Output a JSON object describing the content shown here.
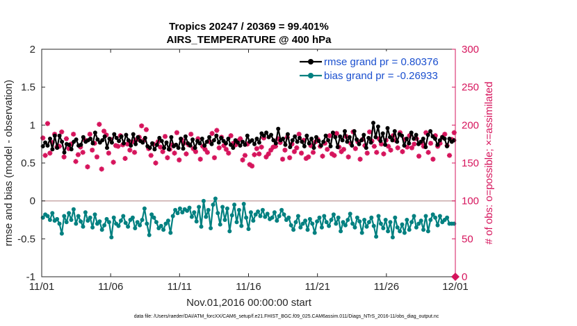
{
  "chart_data": {
    "type": "line",
    "title": "Tropics 20247 / 20369 = 99.401%",
    "subtitle": "AIRS_TEMPERATURE @ 400 hPa",
    "xlabel": "Nov.01,2016 00:00:00 start",
    "ylabel": "rmse and bias (model - observation)",
    "ylabel_right": "# of obs: o=possible; ×=assimilated",
    "footer": "data file: /Users/raeder/DAI/ATM_forcXX/CAM6_setup/f.e21.FHIST_BGC.f09_025.CAM6assim.011/Diags_NTrS_2016-11/obs_diag_output.nc",
    "xlim": [
      0,
      30
    ],
    "ylim": [
      -1,
      2
    ],
    "ylim_right": [
      0,
      300
    ],
    "x_ticks": [
      0,
      5,
      10,
      15,
      20,
      25,
      30
    ],
    "x_tick_labels": [
      "11/01",
      "11/06",
      "11/11",
      "11/16",
      "11/21",
      "11/26",
      "12/01"
    ],
    "y_ticks": [
      -1,
      -0.5,
      0,
      0.5,
      1,
      1.5,
      2
    ],
    "y_tick_labels": [
      "-1",
      "-0.5",
      "0",
      "0.5",
      "1",
      "1.5",
      "2"
    ],
    "y_right_ticks": [
      0,
      50,
      100,
      150,
      200,
      250,
      300
    ],
    "y_right_tick_labels": [
      "0",
      "50",
      "100",
      "150",
      "200",
      "250",
      "300"
    ],
    "legend_position": "top-right",
    "series": [
      {
        "name": "rmse grand pr = 0.80376",
        "axis": "left",
        "color": "#000000",
        "marker": "circle",
        "values": [
          0.72,
          0.77,
          0.73,
          0.82,
          0.68,
          0.86,
          0.7,
          0.86,
          0.78,
          0.64,
          0.75,
          0.74,
          0.68,
          0.78,
          0.81,
          0.73,
          0.74,
          0.84,
          0.78,
          0.8,
          0.82,
          0.76,
          0.9,
          0.81,
          0.77,
          0.8,
          0.85,
          0.7,
          0.82,
          0.77,
          0.88,
          0.83,
          0.79,
          0.85,
          0.76,
          0.87,
          0.8,
          0.73,
          0.88,
          0.75,
          0.84,
          0.79,
          0.77,
          0.83,
          0.72,
          0.7,
          0.76,
          0.68,
          0.74,
          0.83,
          0.79,
          0.7,
          0.77,
          0.68,
          0.84,
          0.72,
          0.74,
          0.7,
          0.82,
          0.69,
          0.85,
          0.76,
          0.73,
          0.81,
          0.7,
          0.79,
          0.76,
          0.82,
          0.73,
          0.78,
          0.84,
          0.75,
          0.8,
          0.86,
          0.77,
          0.83,
          0.79,
          0.76,
          0.82,
          0.74,
          0.7,
          0.8,
          0.77,
          0.73,
          0.78,
          0.74,
          0.86,
          0.78,
          0.8,
          0.75,
          0.82,
          0.77,
          0.89,
          0.86,
          0.9,
          0.84,
          0.87,
          0.8,
          0.76,
          0.95,
          0.8,
          0.82,
          0.74,
          0.88,
          0.71,
          0.8,
          0.85,
          0.78,
          0.83,
          0.78,
          0.72,
          0.86,
          0.76,
          0.82,
          0.7,
          0.84,
          0.79,
          0.73,
          0.78,
          0.86,
          0.8,
          0.72,
          0.9,
          0.84,
          0.71,
          0.85,
          0.8,
          0.92,
          0.78,
          0.84,
          0.73,
          0.92,
          0.81,
          0.75,
          0.8,
          0.87,
          0.7,
          0.83,
          0.77,
          1.03,
          0.84,
          0.98,
          0.79,
          0.89,
          0.74,
          0.96,
          0.84,
          0.8,
          0.92,
          0.78,
          0.88,
          0.86,
          0.73,
          0.82,
          0.76,
          0.9,
          0.82,
          0.87,
          0.75,
          0.78,
          0.82,
          0.71,
          0.87,
          0.92,
          0.85,
          0.82,
          0.74,
          0.8,
          0.84,
          0.82,
          0.72,
          0.82,
          0.78,
          0.8
        ]
      },
      {
        "name": "bias grand pr = -0.26933",
        "axis": "left",
        "color": "#008080",
        "marker": "circle",
        "values": [
          -0.22,
          -0.18,
          -0.2,
          -0.25,
          -0.16,
          -0.26,
          -0.24,
          -0.3,
          -0.43,
          -0.2,
          -0.28,
          -0.16,
          -0.25,
          -0.11,
          -0.3,
          -0.2,
          -0.27,
          -0.34,
          -0.15,
          -0.26,
          -0.22,
          -0.35,
          -0.18,
          -0.3,
          -0.27,
          -0.38,
          -0.32,
          -0.24,
          -0.28,
          -0.48,
          -0.22,
          -0.3,
          -0.33,
          -0.26,
          -0.2,
          -0.29,
          -0.34,
          -0.25,
          -0.22,
          -0.36,
          -0.28,
          -0.32,
          -0.25,
          -0.1,
          -0.3,
          -0.45,
          -0.18,
          -0.22,
          -0.28,
          -0.36,
          -0.33,
          -0.38,
          -0.3,
          -0.26,
          -0.42,
          -0.2,
          -0.12,
          -0.16,
          -0.1,
          -0.15,
          -0.11,
          -0.13,
          -0.09,
          -0.21,
          -0.15,
          -0.27,
          -0.08,
          -0.34,
          0.0,
          -0.21,
          -0.12,
          -0.36,
          -0.05,
          0.03,
          -0.16,
          -0.31,
          -0.08,
          -0.25,
          -0.1,
          -0.4,
          -0.19,
          -0.05,
          -0.28,
          -0.12,
          -0.33,
          -0.04,
          -0.22,
          -0.37,
          -0.15,
          -0.26,
          -0.18,
          -0.14,
          -0.2,
          -0.12,
          -0.21,
          -0.17,
          -0.24,
          -0.22,
          -0.15,
          -0.26,
          -0.2,
          -0.12,
          -0.18,
          -0.25,
          -0.22,
          -0.32,
          -0.38,
          -0.28,
          -0.2,
          -0.35,
          -0.3,
          -0.26,
          -0.38,
          -0.24,
          -0.3,
          -0.42,
          -0.27,
          -0.22,
          -0.35,
          -0.2,
          -0.28,
          -0.33,
          -0.25,
          -0.18,
          -0.3,
          -0.22,
          -0.4,
          -0.28,
          -0.32,
          -0.25,
          -0.17,
          -0.3,
          -0.35,
          -0.22,
          -0.27,
          -0.42,
          -0.25,
          -0.34,
          -0.28,
          -0.22,
          -0.33,
          -0.47,
          -0.2,
          -0.3,
          -0.36,
          -0.25,
          -0.4,
          -0.28,
          -0.48,
          -0.22,
          -0.35,
          -0.4,
          -0.31,
          -0.42,
          -0.25,
          -0.38,
          -0.28,
          -0.2,
          -0.35,
          -0.3,
          -0.26,
          -0.38,
          -0.2,
          -0.4,
          -0.25,
          -0.18,
          -0.22,
          -0.32,
          -0.2,
          -0.28,
          -0.25,
          -0.22,
          -0.3,
          -0.3,
          -0.3
        ]
      },
      {
        "name": "# of obs possible/assimilated",
        "axis": "right",
        "color": "#d6145c",
        "marker": "asterisk",
        "values": [
          183,
          160,
          202,
          163,
          177,
          188,
          171,
          172,
          191,
          158,
          182,
          169,
          175,
          188,
          152,
          161,
          171,
          164,
          180,
          145,
          188,
          167,
          176,
          158,
          201,
          142,
          192,
          187,
          163,
          181,
          151,
          173,
          172,
          186,
          174,
          156,
          175,
          167,
          178,
          164,
          181,
          184,
          199,
          180,
          194,
          169,
          160,
          175,
          150,
          178,
          171,
          165,
          185,
          157,
          168,
          174,
          163,
          190,
          154,
          181,
          176,
          162,
          174,
          188,
          169,
          165,
          182,
          155,
          172,
          168,
          164,
          178,
          189,
          157,
          193,
          170,
          184,
          173,
          168,
          163,
          186,
          176,
          174,
          179,
          182,
          154,
          160,
          175,
          148,
          146,
          161,
          169,
          162,
          171,
          183,
          158,
          162,
          167,
          171,
          172,
          182,
          177,
          155,
          167,
          184,
          157,
          175,
          165,
          170,
          188,
          163,
          180,
          156,
          158,
          173,
          164,
          178,
          181,
          172,
          159,
          176,
          168,
          186,
          162,
          160,
          189,
          171,
          165,
          168,
          185,
          158,
          176,
          191,
          169,
          178,
          155,
          181,
          173,
          163,
          191,
          179,
          172,
          164,
          182,
          175,
          162,
          180,
          172,
          167,
          186,
          180,
          170,
          190,
          165,
          181,
          171,
          186,
          170,
          175,
          182,
          159,
          177,
          172,
          190,
          164,
          176,
          155,
          186,
          172,
          176,
          184,
          188,
          173,
          160,
          181,
          190
        ]
      }
    ]
  }
}
